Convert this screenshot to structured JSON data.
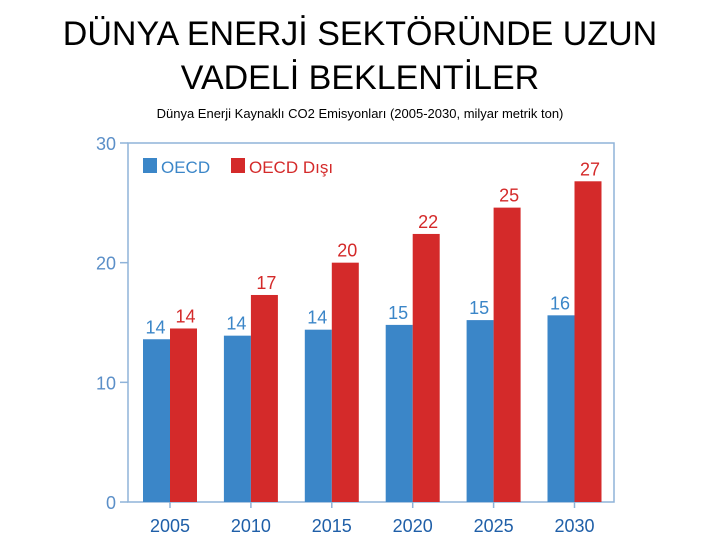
{
  "page": {
    "title_line1": "DÜNYA ENERJİ SEKTÖRÜNDE UZUN",
    "title_line2": "VADELİ BEKLENTİLER"
  },
  "chart_data": {
    "type": "bar",
    "title": "Dünya Enerji Kaynaklı CO2 Emisyonları (2005-2030, milyar metrik ton)",
    "categories": [
      "2005",
      "2010",
      "2015",
      "2020",
      "2025",
      "2030"
    ],
    "series": [
      {
        "name": "OECD",
        "color": "#3b86c8",
        "values": [
          13.6,
          13.9,
          14.4,
          14.8,
          15.2,
          15.6
        ],
        "labels": [
          "14",
          "14",
          "14",
          "15",
          "15",
          "16"
        ]
      },
      {
        "name": "OECD Dışı",
        "color": "#d42a2a",
        "values": [
          14.5,
          17.3,
          20.0,
          22.4,
          24.6,
          26.8
        ],
        "labels": [
          "14",
          "17",
          "20",
          "22",
          "25",
          "27"
        ]
      }
    ],
    "ylim": [
      0,
      30
    ],
    "yticks": [
      "0",
      "10",
      "20",
      "30"
    ],
    "xlabel": "",
    "ylabel": "",
    "legend": "top-left",
    "grid": false
  }
}
